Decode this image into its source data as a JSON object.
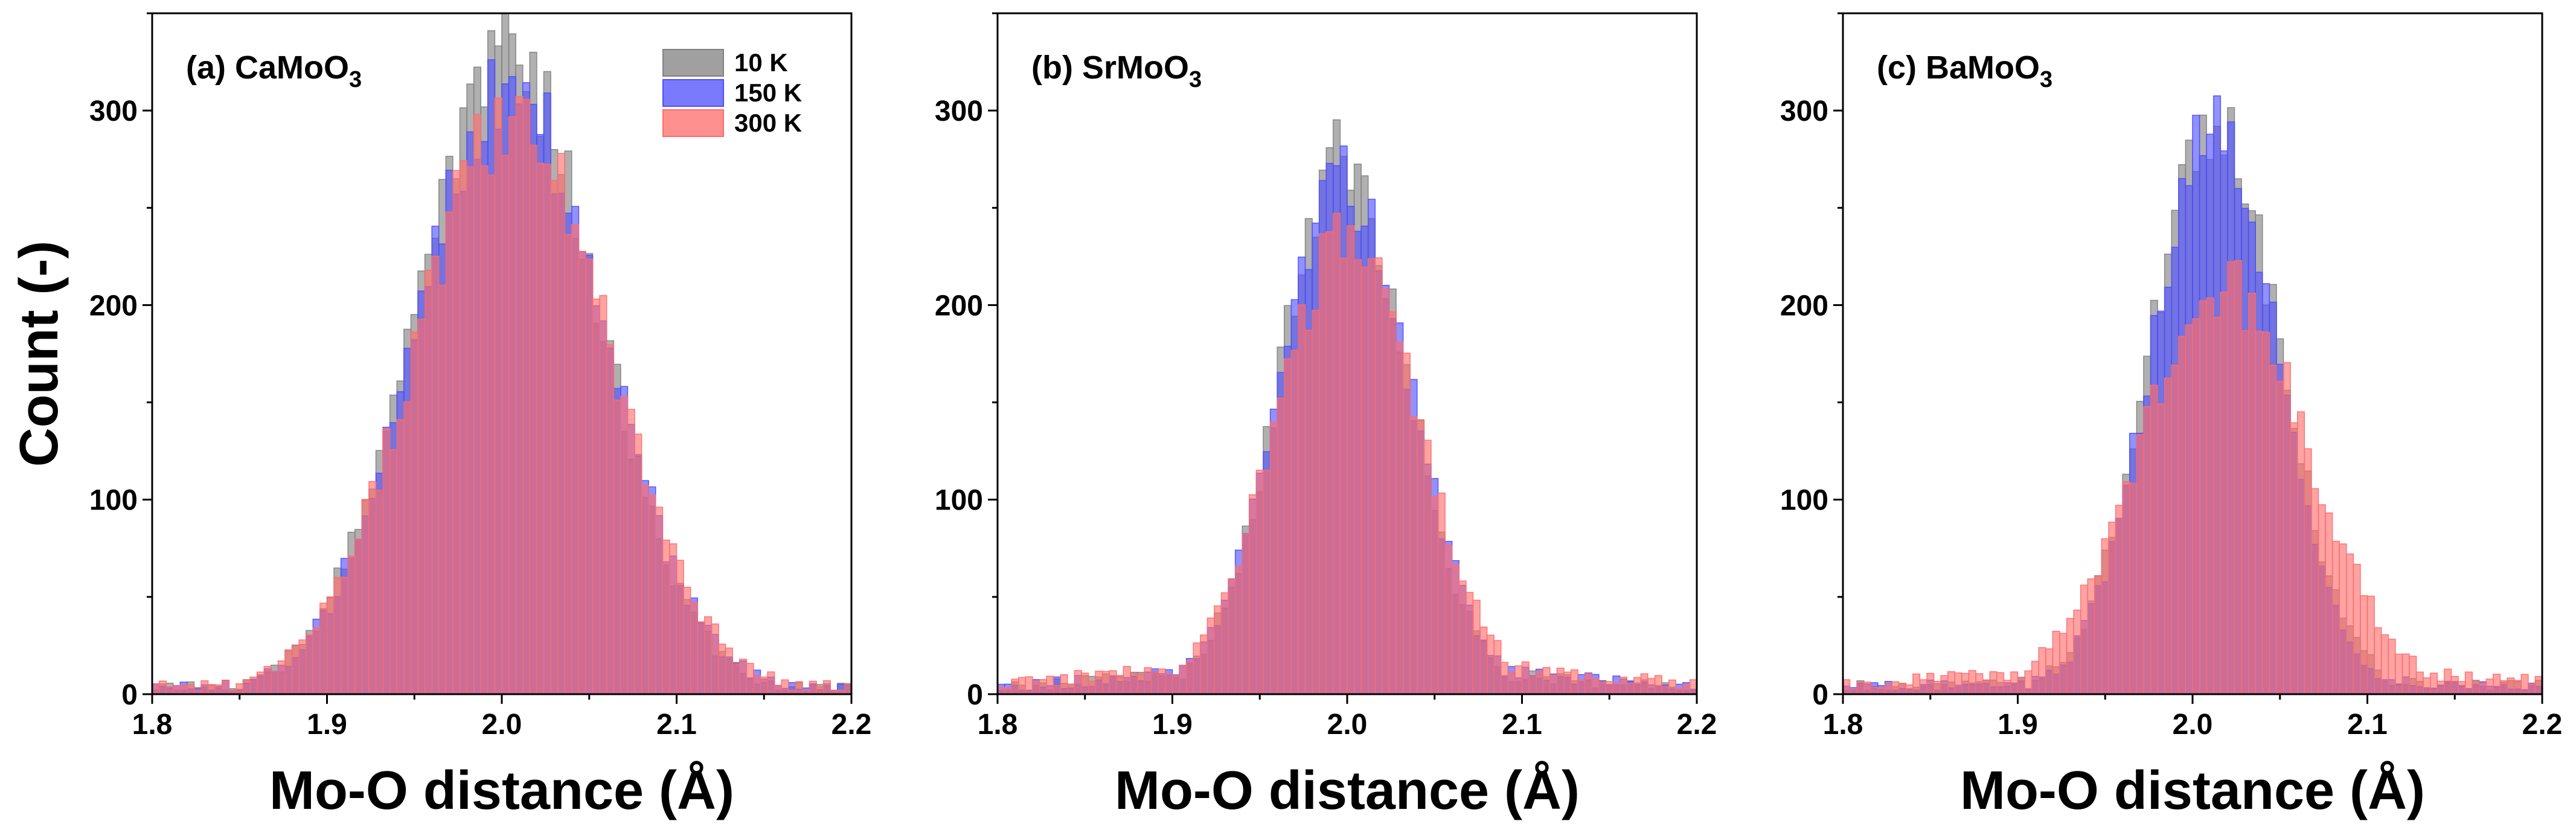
{
  "chart_data": {
    "type": "histogram",
    "shared": {
      "xlabel": "Mo-O distance (Å)",
      "ylabel": "Count (-)",
      "xlim": [
        1.8,
        2.2
      ],
      "ylim": [
        0,
        350
      ],
      "x_ticks": [
        1.8,
        1.9,
        2.0,
        2.1,
        2.2
      ],
      "y_ticks": [
        0,
        100,
        200,
        300
      ],
      "bin_width": 0.004
    },
    "legend": [
      {
        "name": "10 K",
        "color": "#808080"
      },
      {
        "name": "150 K",
        "color": "#4d4dff"
      },
      {
        "name": "300 K",
        "color": "#ff6b6b"
      }
    ],
    "panels": [
      {
        "id": "a",
        "title_prefix": "(a) CaMoO",
        "title_sub": "3",
        "series": [
          {
            "name": "10 K",
            "center": 2.003,
            "sigma": 0.052,
            "peak": 330,
            "tail_amp": 0
          },
          {
            "name": "150 K",
            "center": 2.005,
            "sigma": 0.053,
            "peak": 312,
            "tail_amp": 0
          },
          {
            "name": "300 K",
            "center": 2.006,
            "sigma": 0.055,
            "peak": 296,
            "tail_amp": 0
          }
        ]
      },
      {
        "id": "b",
        "title_prefix": "(b) SrMoO",
        "title_sub": "3",
        "series": [
          {
            "name": "10 K",
            "center": 1.998,
            "sigma": 0.036,
            "peak": 276,
            "tail_amp": 14
          },
          {
            "name": "150 K",
            "center": 1.999,
            "sigma": 0.037,
            "peak": 262,
            "tail_amp": 15
          },
          {
            "name": "300 K",
            "center": 2.0,
            "sigma": 0.04,
            "peak": 236,
            "tail_amp": 18
          }
        ]
      },
      {
        "id": "c",
        "title_prefix": "(c) BaMoO",
        "title_sub": "3",
        "series": [
          {
            "name": "10 K",
            "center": 2.013,
            "sigma": 0.037,
            "peak": 292,
            "tail_amp": 9
          },
          {
            "name": "150 K",
            "center": 2.013,
            "sigma": 0.036,
            "peak": 290,
            "tail_amp": 9
          },
          {
            "name": "300 K",
            "center": 2.018,
            "sigma": 0.048,
            "peak": 210,
            "tail_amp": 14
          }
        ]
      }
    ]
  }
}
